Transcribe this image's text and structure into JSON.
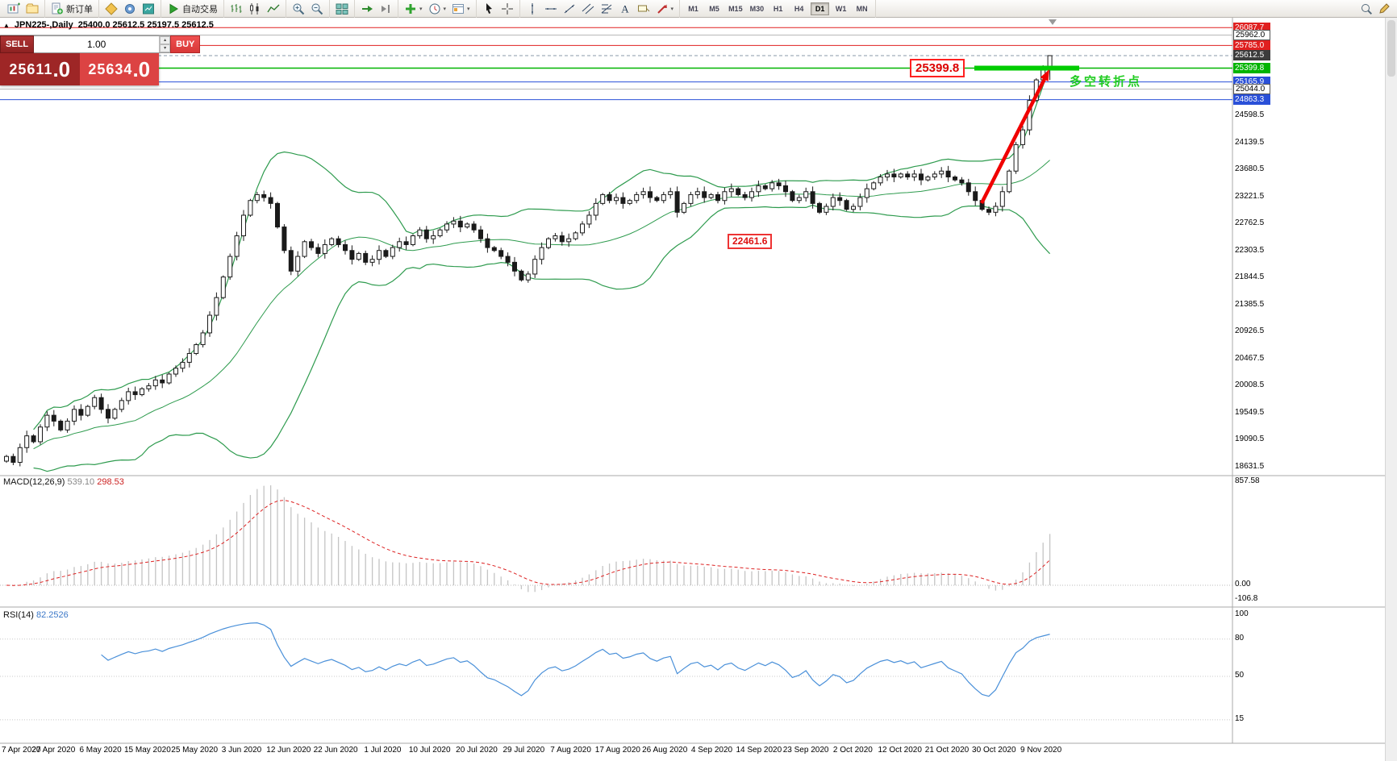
{
  "toolbar": {
    "timeframes": [
      "M1",
      "M5",
      "M15",
      "M30",
      "H1",
      "H4",
      "D1",
      "W1",
      "MN"
    ],
    "active_timeframe": "D1",
    "groups": [
      {
        "items": [
          {
            "icon": "new-chart"
          },
          {
            "icon": "profiles"
          }
        ]
      },
      {
        "items": [
          {
            "icon": "new-order",
            "label": "新订单",
            "name": "new-order-button"
          }
        ]
      },
      {
        "items": [
          {
            "icon": "metaeditor"
          },
          {
            "icon": "options"
          },
          {
            "icon": "market-watch"
          }
        ]
      },
      {
        "items": [
          {
            "icon": "autotrading",
            "label": "自动交易",
            "name": "autotrading-button"
          }
        ]
      },
      {
        "items": [
          {
            "icon": "bar-chart"
          },
          {
            "icon": "candle-chart"
          },
          {
            "icon": "line-chart"
          }
        ]
      },
      {
        "items": [
          {
            "icon": "zoom-in"
          },
          {
            "icon": "zoom-out"
          }
        ]
      },
      {
        "items": [
          {
            "icon": "tile-windows"
          }
        ]
      },
      {
        "items": [
          {
            "icon": "auto-scroll"
          },
          {
            "icon": "chart-shift"
          }
        ]
      },
      {
        "items": [
          {
            "icon": "indicators",
            "caret": true
          },
          {
            "icon": "periods",
            "caret": true
          },
          {
            "icon": "templates",
            "caret": true
          }
        ]
      },
      {
        "items": [
          {
            "icon": "cursor"
          },
          {
            "icon": "crosshair"
          }
        ]
      },
      {
        "items": [
          {
            "icon": "vertical-line"
          },
          {
            "icon": "horizontal-line"
          },
          {
            "icon": "trendline"
          },
          {
            "icon": "channel"
          },
          {
            "icon": "fibonacci"
          },
          {
            "icon": "text"
          },
          {
            "icon": "text-label"
          },
          {
            "icon": "arrows",
            "caret": true
          }
        ]
      }
    ],
    "right_items": [
      {
        "icon": "search"
      },
      {
        "icon": "pencil"
      }
    ]
  },
  "trade_panel": {
    "toggle_glyph": "▲",
    "sell_label": "SELL",
    "buy_label": "BUY",
    "volume": "1.00",
    "sell_price_main": "25611",
    "sell_price_pips": ".0",
    "buy_price_main": "25634",
    "buy_price_pips": ".0"
  },
  "chart": {
    "symbol_title": "JPN225-,Daily",
    "ohlc_readout": "25400.0 25612.5 25197.5 25612.5",
    "levels": [
      {
        "label": "26087.7",
        "value": 26087.7,
        "box": "#e02020",
        "text": "#ffffff",
        "line": "solid-red"
      },
      {
        "label": "25962.0",
        "value": 25962.0,
        "box": "#ffffff",
        "text": "#000000",
        "line": "thin-gray"
      },
      {
        "label": "25785.0",
        "value": 25785.0,
        "box": "#e02020",
        "text": "#ffffff",
        "line": "solid-red"
      },
      {
        "label": "25612.5",
        "value": 25612.5,
        "box": "#3c3c3c",
        "text": "#ffffff",
        "line": "dashed-current"
      },
      {
        "label": "25399.8",
        "value": 25399.8,
        "box": "#00b400",
        "text": "#ffffff",
        "line": "solid-green"
      },
      {
        "label": "25165.9",
        "value": 25165.9,
        "box": "#2a50d8",
        "text": "#ffffff",
        "line": "solid-blue"
      },
      {
        "label": "25044.0",
        "value": 25044.0,
        "box": "#ffffff",
        "text": "#000000",
        "line": "thin-gray"
      },
      {
        "label": "24863.3",
        "value": 24863.3,
        "box": "#2a50d8",
        "text": "#ffffff",
        "line": "solid-blue"
      }
    ],
    "y_ticks": [
      "24598.5",
      "24139.5",
      "23680.5",
      "23221.5",
      "22762.5",
      "22303.5",
      "21844.5",
      "21385.5",
      "20926.5",
      "20467.5",
      "20008.5",
      "19549.5",
      "19090.5",
      "18631.5"
    ],
    "dates": [
      "7 Apr 2020",
      "27 Apr 2020",
      "6 May 2020",
      "15 May 2020",
      "25 May 2020",
      "3 Jun 2020",
      "12 Jun 2020",
      "22 Jun 2020",
      "1 Jul 2020",
      "10 Jul 2020",
      "20 Jul 2020",
      "29 Jul 2020",
      "7 Aug 2020",
      "17 Aug 2020",
      "26 Aug 2020",
      "4 Sep 2020",
      "14 Sep 2020",
      "23 Sep 2020",
      "2 Oct 2020",
      "12 Oct 2020",
      "21 Oct 2020",
      "30 Oct 2020",
      "9 Nov 2020"
    ],
    "annotations": {
      "resistance_price": "25399.8",
      "support_price": "22461.6",
      "note": "多空转折点"
    },
    "macd": {
      "name": "MACD(12,26,9)",
      "main_value": "539.10",
      "signal_value": "298.53",
      "axis": [
        "857.58",
        "0.00",
        "-106.8"
      ]
    },
    "rsi": {
      "name": "RSI(14)",
      "value": "82.2526",
      "axis": [
        "100",
        "80",
        "50",
        "15"
      ]
    }
  },
  "chart_data": {
    "type": "candlestick",
    "title": "JPN225-,Daily",
    "ohlc_current": [
      25400.0,
      25612.5,
      25197.5,
      25612.5
    ],
    "closes": [
      18800,
      18700,
      18950,
      19150,
      19050,
      19300,
      19500,
      19400,
      19250,
      19400,
      19600,
      19500,
      19650,
      19800,
      19600,
      19450,
      19600,
      19750,
      19900,
      19850,
      19950,
      20000,
      20100,
      20050,
      20200,
      20300,
      20400,
      20550,
      20700,
      20900,
      21200,
      21500,
      21850,
      22200,
      22550,
      22900,
      23150,
      23250,
      23200,
      23100,
      22700,
      22300,
      21950,
      22200,
      22450,
      22350,
      22250,
      22400,
      22500,
      22400,
      22300,
      22150,
      22250,
      22100,
      22150,
      22300,
      22200,
      22350,
      22450,
      22400,
      22550,
      22650,
      22500,
      22550,
      22650,
      22750,
      22800,
      22700,
      22750,
      22650,
      22500,
      22350,
      22300,
      22200,
      22100,
      21950,
      21800,
      21900,
      22150,
      22350,
      22500,
      22550,
      22450,
      22500,
      22600,
      22750,
      22900,
      23100,
      23250,
      23150,
      23200,
      23100,
      23150,
      23250,
      23300,
      23200,
      23150,
      23250,
      23300,
      22950,
      23100,
      23250,
      23300,
      23200,
      23250,
      23150,
      23300,
      23350,
      23250,
      23200,
      23300,
      23400,
      23350,
      23450,
      23400,
      23300,
      23150,
      23200,
      23300,
      23100,
      22950,
      23050,
      23200,
      23150,
      23000,
      23050,
      23200,
      23350,
      23450,
      23550,
      23600,
      23550,
      23600,
      23550,
      23600,
      23500,
      23550,
      23600,
      23650,
      23550,
      23500,
      23450,
      23300,
      23150,
      23000,
      22950,
      23050,
      23300,
      23650,
      24100,
      24350,
      24850,
      25200,
      25400,
      25612.5
    ],
    "x_labels": [
      "7 Apr 2020",
      "27 Apr 2020",
      "6 May 2020",
      "15 May 2020",
      "25 May 2020",
      "3 Jun 2020",
      "12 Jun 2020",
      "22 Jun 2020",
      "1 Jul 2020",
      "10 Jul 2020",
      "20 Jul 2020",
      "29 Jul 2020",
      "7 Aug 2020",
      "17 Aug 2020",
      "26 Aug 2020",
      "4 Sep 2020",
      "14 Sep 2020",
      "23 Sep 2020",
      "2 Oct 2020",
      "12 Oct 2020",
      "21 Oct 2020",
      "30 Oct 2020",
      "9 Nov 2020"
    ],
    "y_ticks": [
      24598.5,
      24139.5,
      23680.5,
      23221.5,
      22762.5,
      22303.5,
      21844.5,
      21385.5,
      20926.5,
      20467.5,
      20008.5,
      19549.5,
      19090.5,
      18631.5
    ],
    "price_levels": [
      26087.7,
      25962.0,
      25785.0,
      25612.5,
      25399.8,
      25165.9,
      25044.0,
      24863.3
    ],
    "indicators": {
      "bollinger": {
        "period": 20,
        "deviation": 2
      },
      "macd": {
        "fast": 12,
        "slow": 26,
        "signal": 9,
        "last_main": 539.1,
        "last_signal": 298.53,
        "y_axis": [
          857.58,
          0.0,
          -106.8
        ]
      },
      "rsi": {
        "period": 14,
        "last": 82.2526,
        "levels": [
          80,
          50,
          15
        ]
      }
    },
    "annotations": {
      "resistance": 25399.8,
      "support": 22461.6,
      "note": "多空转折点"
    }
  },
  "colors": {
    "candle_outline": "#1a1a1a",
    "bollinger_green": "#2e9b4e",
    "macd_histogram": "#c4c4c4",
    "macd_signal": "#dd2222",
    "rsi_line": "#4a90d9",
    "level_red": "#e02020",
    "level_green": "#00b400",
    "level_blue": "#2a50d8",
    "current_price_line": "#8899aa",
    "arrow_red": "#f00000",
    "thick_bar_green": "#00cc00"
  }
}
